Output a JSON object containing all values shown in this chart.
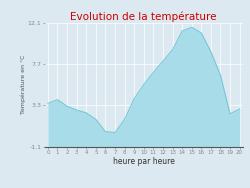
{
  "title": "Evolution de la température",
  "xlabel": "heure par heure",
  "ylabel": "Température en °C",
  "background_color": "#dce9f0",
  "plot_bg_color": "#dce9f0",
  "line_color": "#6ec6d8",
  "fill_color": "#a8dce8",
  "title_color": "#cc0000",
  "axis_color": "#888888",
  "grid_color": "#ffffff",
  "ylim": [
    -1.1,
    12.1
  ],
  "yticks": [
    -1.1,
    3.3,
    7.7,
    12.1
  ],
  "ytick_labels": [
    "-1.1",
    "3.3",
    "7.7",
    "12.1"
  ],
  "hours": [
    0,
    1,
    2,
    3,
    4,
    5,
    6,
    7,
    8,
    9,
    10,
    11,
    12,
    13,
    14,
    15,
    16,
    17,
    18,
    19,
    20
  ],
  "values": [
    3.5,
    3.9,
    3.2,
    2.8,
    2.5,
    1.8,
    0.5,
    0.4,
    1.8,
    4.0,
    5.5,
    6.8,
    8.0,
    9.2,
    11.2,
    11.6,
    11.0,
    9.0,
    6.5,
    2.4,
    2.9
  ]
}
